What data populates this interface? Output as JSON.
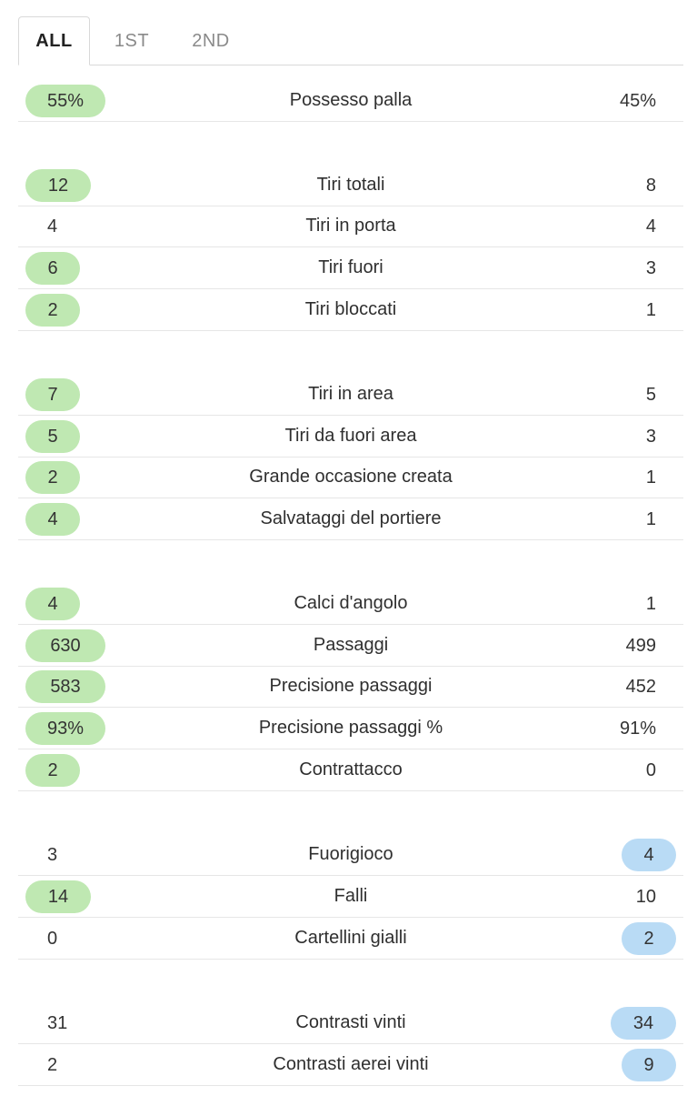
{
  "tabs": [
    {
      "label": "ALL",
      "active": true
    },
    {
      "label": "1ST",
      "active": false
    },
    {
      "label": "2ND",
      "active": false
    }
  ],
  "stats": [
    {
      "label": "Possesso palla",
      "home": "55%",
      "away": "45%",
      "highlight": "home"
    },
    {
      "label": "Tiri totali",
      "home": "12",
      "away": "8",
      "highlight": "home"
    },
    {
      "label": "Tiri in porta",
      "home": "4",
      "away": "4",
      "highlight": "none"
    },
    {
      "label": "Tiri fuori",
      "home": "6",
      "away": "3",
      "highlight": "home"
    },
    {
      "label": "Tiri bloccati",
      "home": "2",
      "away": "1",
      "highlight": "home"
    },
    {
      "label": "Tiri in area",
      "home": "7",
      "away": "5",
      "highlight": "home"
    },
    {
      "label": "Tiri da fuori area",
      "home": "5",
      "away": "3",
      "highlight": "home"
    },
    {
      "label": "Grande occasione creata",
      "home": "2",
      "away": "1",
      "highlight": "home"
    },
    {
      "label": "Salvataggi del portiere",
      "home": "4",
      "away": "1",
      "highlight": "home"
    },
    {
      "label": "Calci d'angolo",
      "home": "4",
      "away": "1",
      "highlight": "home"
    },
    {
      "label": "Passaggi",
      "home": "630",
      "away": "499",
      "highlight": "home"
    },
    {
      "label": "Precisione passaggi",
      "home": "583",
      "away": "452",
      "highlight": "home"
    },
    {
      "label": "Precisione passaggi %",
      "home": "93%",
      "away": "91%",
      "highlight": "home"
    },
    {
      "label": "Contrattacco",
      "home": "2",
      "away": "0",
      "highlight": "home"
    },
    {
      "label": "Fuorigioco",
      "home": "3",
      "away": "4",
      "highlight": "away"
    },
    {
      "label": "Falli",
      "home": "14",
      "away": "10",
      "highlight": "home"
    },
    {
      "label": "Cartellini gialli",
      "home": "0",
      "away": "2",
      "highlight": "away"
    },
    {
      "label": "Contrasti vinti",
      "home": "31",
      "away": "34",
      "highlight": "away"
    },
    {
      "label": "Contrasti aerei vinti",
      "home": "2",
      "away": "9",
      "highlight": "away"
    }
  ],
  "colors": {
    "home_highlight": "#bfe8b2",
    "away_highlight": "#b9dbf5"
  }
}
